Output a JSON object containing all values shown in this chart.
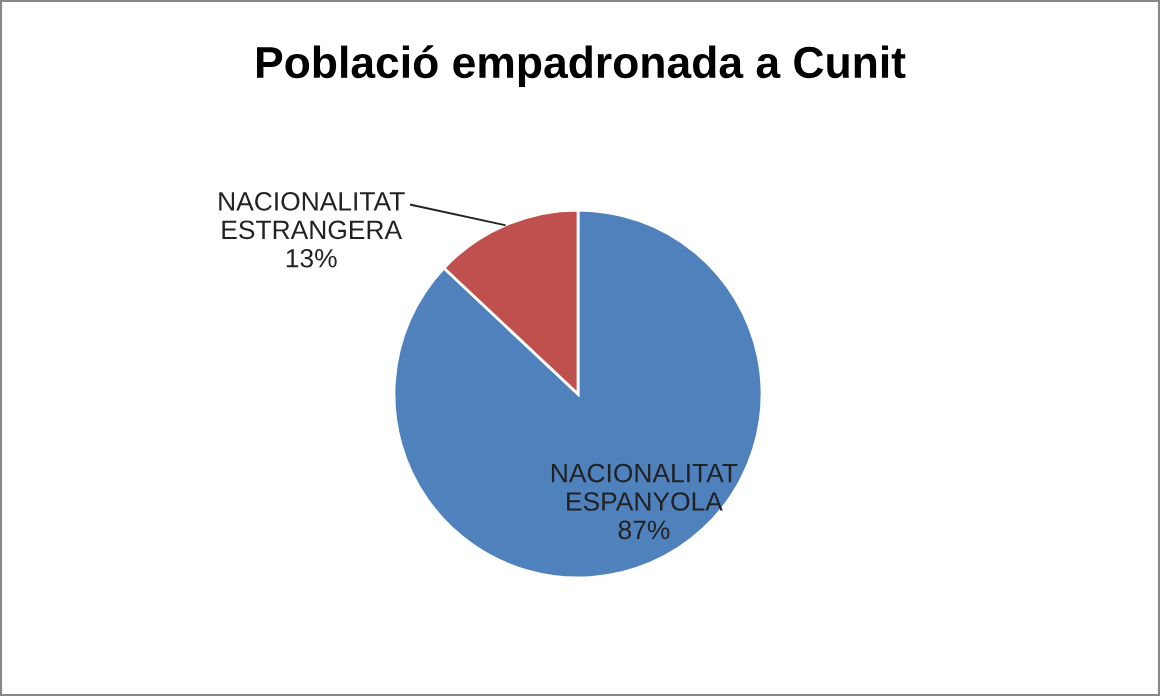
{
  "chart_data": {
    "type": "pie",
    "title": "Població empadronada a Cunit",
    "categories": [
      "NACIONALITAT ESPANYOLA",
      "NACIONALITAT ESTRANGERA"
    ],
    "values": [
      87,
      13
    ],
    "value_labels": [
      "87%",
      "13%"
    ],
    "colors": [
      "#4f81bd",
      "#c0504d"
    ],
    "legend": false
  }
}
